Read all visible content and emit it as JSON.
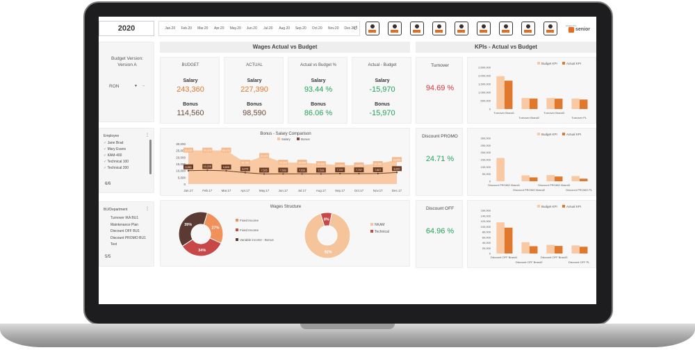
{
  "header": {
    "year": "2020",
    "months": [
      "Jan.20",
      "Feb.20",
      "Mar.20",
      "Apr.20",
      "May.20",
      "Jun.20",
      "Jul.20",
      "Aug.20",
      "Sep.20",
      "Oct.20",
      "Nov.20",
      "Dec.20"
    ],
    "reset_icon": "reset-icon",
    "icons": [
      "presentation-icon",
      "org-structure-icon",
      "calendar-icon",
      "manager-icon",
      "employee-icon",
      "team-icon",
      "calculator-icon",
      "report-icon",
      "building-icon"
    ],
    "brand_small": "powered by",
    "brand": "senior"
  },
  "sidebar": {
    "budget_label": "Budget Version:",
    "budget_value": "Version A",
    "currency": "RON",
    "currency_extra": "--",
    "employee_title": "Employee",
    "employees": [
      "Jane Brad",
      "Mary Evans",
      "KAM-400",
      "Technical 100",
      "Technical 200"
    ],
    "employee_count": "6/6",
    "dept_title": "BU/Department",
    "departments": [
      "Turnover IKA BU1",
      "Maintenance Plan",
      "Discount OFF BU1",
      "Discount PROMO BU1",
      "Test"
    ],
    "dept_count": "5/5"
  },
  "wages": {
    "title": "Wages Actual vs Budget",
    "cards": [
      {
        "title": "BUDGET",
        "salary_label": "Salary",
        "salary": "243,360",
        "bonus_label": "Bonus",
        "bonus": "114,560"
      },
      {
        "title": "ACTUAL",
        "salary_label": "Salary",
        "salary": "227,390",
        "bonus_label": "Bonus",
        "bonus": "98,590"
      },
      {
        "title": "Actual vs Budget %",
        "salary_label": "Salary",
        "salary": "93.44 %",
        "bonus_label": "Bonus",
        "bonus": "86.06 %"
      },
      {
        "title": "Actual - Budget",
        "salary_label": "Salary",
        "salary": "-15,970",
        "bonus_label": "Bonus",
        "bonus": "-15,970"
      }
    ],
    "colors": {
      "salary": "#e0782e",
      "bonus": "#6b4a3a",
      "pct": "#22a35a",
      "orange_dark": "#e0782e"
    }
  },
  "chart_data": [
    {
      "type": "area",
      "title": "Bonus - Salary Comparison",
      "legend": [
        "Salary",
        "Bonus"
      ],
      "categories": [
        "Jan.17",
        "Feb.17",
        "Mar.17",
        "Apr.17",
        "May.17",
        "Jun.17",
        "Jul.17",
        "Aug.17",
        "Sep.17",
        "Oct.17",
        "Nov.17",
        "Dec.17"
      ],
      "series": [
        {
          "name": "Salary",
          "values": [
            25000,
            25000,
            25000,
            16000,
            21000,
            16000,
            16000,
            15000,
            14000,
            14000,
            15000,
            18000
          ]
        },
        {
          "name": "Bonus",
          "values": [
            9950,
            10225,
            9825,
            8475,
            7525,
            7533,
            7533,
            7533,
            7707,
            7707,
            7807,
            8620
          ]
        }
      ],
      "salary_labels": [
        "25,470",
        "25,470",
        "25,470",
        "16,150",
        "21,470",
        "16,310",
        "16,000",
        "15,200",
        "14,870",
        "14,870",
        "15,330",
        "18,450"
      ],
      "bonus_labels": [
        "9,950",
        "10,225",
        "9,825",
        "8,475",
        "7,525",
        "7,533",
        "7,533",
        "7,533",
        "7,707",
        "7,707",
        "7,807",
        "8,620"
      ],
      "yticks": [
        "30,000",
        "25,000",
        "20,000",
        "15,000",
        "10,000",
        "5,000",
        "0"
      ],
      "ylim": [
        0,
        30000
      ]
    },
    {
      "type": "pie",
      "title": "Wages Structure",
      "slices": [
        {
          "name": "Fixed Income",
          "value": 27,
          "label": "27%",
          "color": "#f0905a"
        },
        {
          "name": "Fixed Income",
          "value": 34,
          "label": "34%",
          "color": "#c84848"
        },
        {
          "name": "Variable income - Bonus",
          "value": 39,
          "label": "39%",
          "color": "#5a3a32"
        }
      ]
    },
    {
      "type": "pie",
      "slices": [
        {
          "name": "NKAM",
          "value": 92,
          "label": "92%",
          "color": "#f5c49a"
        },
        {
          "name": "Technical",
          "value": 8,
          "label": "8%",
          "color": "#c84848"
        }
      ]
    },
    {
      "type": "bar",
      "legend": [
        "Budget KPI",
        "Actual KPI"
      ],
      "categories": [
        "Turnover Brand1",
        "Turnover Brand2",
        "Turnover Brand3",
        "Turnover PL"
      ],
      "series": [
        {
          "name": "Budget KPI",
          "values": [
            1970000,
            660000,
            660000,
            630000
          ]
        },
        {
          "name": "Actual KPI",
          "values": [
            1700000,
            630000,
            620000,
            570000
          ]
        }
      ],
      "yticks": [
        "2,500,000",
        "2,000,000",
        "1,500,000",
        "1,000,000",
        "500,000",
        "0"
      ],
      "ylim": [
        0,
        2500000
      ]
    },
    {
      "type": "bar",
      "legend": [
        "Budget KPI",
        "Actual KPI"
      ],
      "categories": [
        "Discount PROMO Brand1",
        "Discount PROMO Brand2",
        "Discount PROMO Brand3",
        "Discount PROMO PL"
      ],
      "series": [
        {
          "name": "Budget KPI",
          "values": [
            162400,
            41000,
            43000,
            36000
          ]
        },
        {
          "name": "Actual KPI",
          "values": [
            0,
            27000,
            33000,
            18000
          ]
        }
      ],
      "yticks": [
        "300,000",
        "250,000",
        "200,000",
        "150,000",
        "100,000",
        "50,000",
        "0"
      ],
      "ylim": [
        0,
        300000
      ]
    },
    {
      "type": "bar",
      "legend": [
        "Budget KPI",
        "Actual KPI"
      ],
      "categories": [
        "Discount OFF Brand1",
        "Discount OFF Brand2",
        "Discount OFF Brand3",
        "Discount OFF PL"
      ],
      "series": [
        {
          "name": "Budget KPI",
          "values": [
            115700,
            42000,
            32000,
            30000
          ]
        },
        {
          "name": "Actual KPI",
          "values": [
            96000,
            27000,
            28000,
            25000
          ]
        }
      ],
      "yticks": [
        "160,000",
        "140,000",
        "120,000",
        "100,000",
        "80,000",
        "60,000",
        "40,000",
        "20,000",
        "0"
      ],
      "ylim": [
        0,
        160000
      ]
    }
  ],
  "kpis": {
    "title": "KPIs - Actual vs Budget",
    "items": [
      {
        "label": "Turnover",
        "value": "94.69 %",
        "color": "#d9363e"
      },
      {
        "label": "Discount PROMO",
        "value": "24.71 %",
        "color": "#22a35a"
      },
      {
        "label": "Discount OFF",
        "value": "64.96 %",
        "color": "#22a35a"
      }
    ]
  }
}
